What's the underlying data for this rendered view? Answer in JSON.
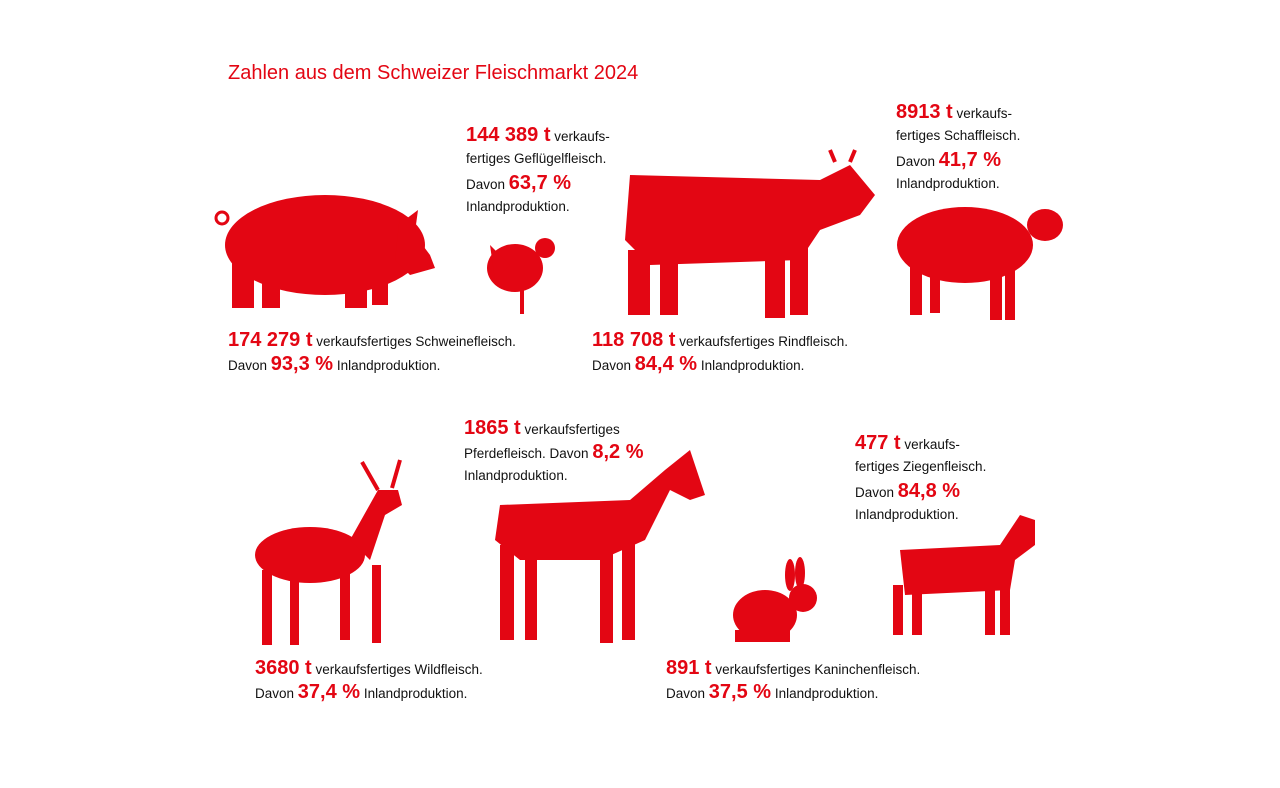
{
  "title": "Zahlen aus dem Schweizer Fleischmarkt 2024",
  "items": [
    {
      "lines": [
        [
          {
            "t": "174 279 t",
            "hl": true
          },
          {
            "t": "verkaufsfertiges Schweinefleisch."
          }
        ],
        [
          {
            "t": "Davon"
          },
          {
            "t": "93,3 %",
            "hl": true
          },
          {
            "t": "Inlandproduktion."
          }
        ]
      ]
    },
    {
      "lines": [
        [
          {
            "t": "144 389 t",
            "hl": true
          },
          {
            "t": "verkaufs-"
          }
        ],
        [
          {
            "t": "fertiges Geflügelfleisch."
          }
        ],
        [
          {
            "t": "Davon"
          },
          {
            "t": "63,7 %",
            "hl": true
          }
        ],
        [
          {
            "t": "Inlandproduktion."
          }
        ]
      ]
    },
    {
      "lines": [
        [
          {
            "t": "118 708 t",
            "hl": true
          },
          {
            "t": "verkaufsfertiges Rindfleisch."
          }
        ],
        [
          {
            "t": "Davon"
          },
          {
            "t": "84,4 %",
            "hl": true
          },
          {
            "t": "Inlandproduktion."
          }
        ]
      ]
    },
    {
      "lines": [
        [
          {
            "t": "8913 t",
            "hl": true
          },
          {
            "t": "verkaufs-"
          }
        ],
        [
          {
            "t": "fertiges Schaffleisch."
          }
        ],
        [
          {
            "t": "Davon"
          },
          {
            "t": "41,7 %",
            "hl": true
          }
        ],
        [
          {
            "t": "Inlandproduktion."
          }
        ]
      ]
    },
    {
      "lines": [
        [
          {
            "t": "3680 t",
            "hl": true
          },
          {
            "t": "verkaufsfertiges Wildfleisch."
          }
        ],
        [
          {
            "t": "Davon"
          },
          {
            "t": "37,4 %",
            "hl": true
          },
          {
            "t": "Inlandproduktion."
          }
        ]
      ]
    },
    {
      "lines": [
        [
          {
            "t": "1865 t",
            "hl": true
          },
          {
            "t": "verkaufsfertiges"
          }
        ],
        [
          {
            "t": "Pferdefleisch. Davon"
          },
          {
            "t": "8,2 %",
            "hl": true
          }
        ],
        [
          {
            "t": "Inlandproduktion."
          }
        ]
      ]
    },
    {
      "lines": [
        [
          {
            "t": "477 t",
            "hl": true
          },
          {
            "t": "verkaufs-"
          }
        ],
        [
          {
            "t": "fertiges Ziegenfleisch."
          }
        ],
        [
          {
            "t": "Davon"
          },
          {
            "t": "84,8 %",
            "hl": true
          }
        ],
        [
          {
            "t": "Inlandproduktion."
          }
        ]
      ]
    },
    {
      "lines": [
        [
          {
            "t": "891 t",
            "hl": true
          },
          {
            "t": "verkaufsfertiges Kaninchenfleisch."
          }
        ],
        [
          {
            "t": "Davon"
          },
          {
            "t": "37,5 %",
            "hl": true
          },
          {
            "t": "Inlandproduktion."
          }
        ]
      ]
    }
  ]
}
